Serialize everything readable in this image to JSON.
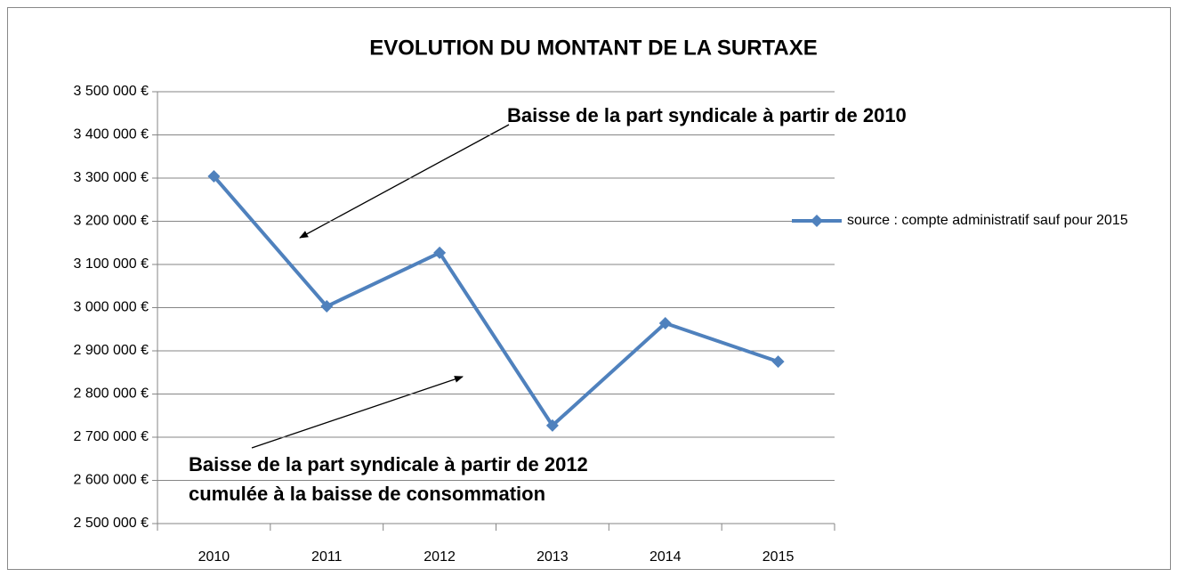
{
  "chart_data": {
    "type": "line",
    "title": "EVOLUTION DU MONTANT DE LA SURTAXE",
    "categories": [
      "2010",
      "2011",
      "2012",
      "2013",
      "2014",
      "2015"
    ],
    "series": [
      {
        "name": "source : compte administratif sauf pour 2015",
        "color": "#4f81bd",
        "values": [
          3304000,
          3003000,
          3127000,
          2727000,
          2964000,
          2875000
        ]
      }
    ],
    "ylim": [
      2500000,
      3500000
    ],
    "yticks": [
      {
        "value": 2500000,
        "label": "2 500 000 €"
      },
      {
        "value": 2600000,
        "label": "2 600 000 €"
      },
      {
        "value": 2700000,
        "label": "2 700 000 €"
      },
      {
        "value": 2800000,
        "label": "2 800 000 €"
      },
      {
        "value": 2900000,
        "label": "2 900 000 €"
      },
      {
        "value": 3000000,
        "label": "3 000 000 €"
      },
      {
        "value": 3100000,
        "label": "3 100 000 €"
      },
      {
        "value": 3200000,
        "label": "3 200 000 €"
      },
      {
        "value": 3300000,
        "label": "3 300 000 €"
      },
      {
        "value": 3400000,
        "label": "3 400 000 €"
      },
      {
        "value": 3500000,
        "label": "3 500 000 €"
      }
    ],
    "grid": true,
    "legend": "right",
    "annotations": [
      "Baisse de la part syndicale à partir de 2010",
      "Baisse de la part syndicale à partir de 2012",
      "cumulée à la baisse de consommation"
    ]
  }
}
